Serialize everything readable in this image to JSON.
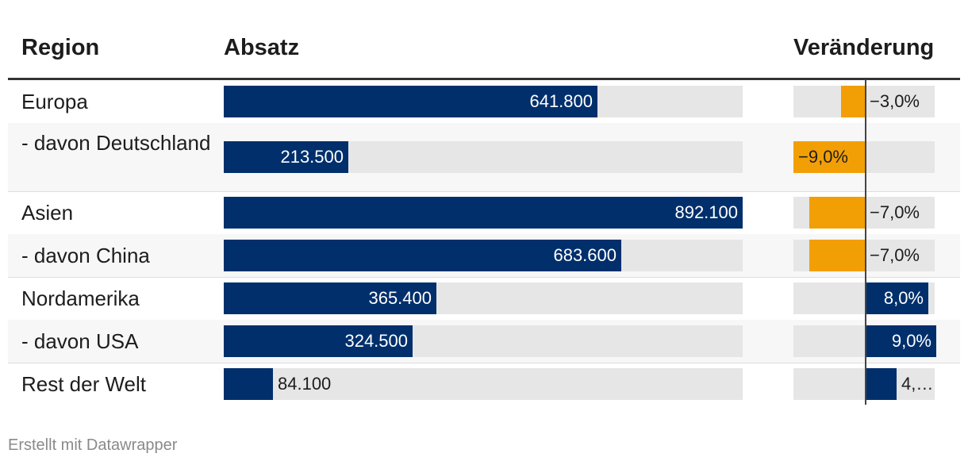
{
  "header": {
    "region": "Region",
    "absatz": "Absatz",
    "change": "Veränderung"
  },
  "footer": "Erstellt mit Datawrapper",
  "colors": {
    "sales_bar": "#002f6c",
    "change_negative": "#f29f05",
    "change_positive": "#002f6c",
    "track": "#e6e6e6"
  },
  "chart_data": {
    "type": "table",
    "title": "",
    "columns": [
      "Region",
      "Absatz",
      "Veränderung"
    ],
    "sales_max": 892100,
    "change_range": [
      -9,
      9
    ],
    "rows": [
      {
        "region": "Europa",
        "sales": 641800,
        "sales_label": "641.800",
        "change": -3.0,
        "change_label": "−3,0%"
      },
      {
        "region": "- davon Deutschland",
        "sales": 213500,
        "sales_label": "213.500",
        "change": -9.0,
        "change_label": "−9,0%"
      },
      {
        "region": "Asien",
        "sales": 892100,
        "sales_label": "892.100",
        "change": -7.0,
        "change_label": "−7,0%"
      },
      {
        "region": "- davon China",
        "sales": 683600,
        "sales_label": "683.600",
        "change": -7.0,
        "change_label": "−7,0%"
      },
      {
        "region": "Nordamerika",
        "sales": 365400,
        "sales_label": "365.400",
        "change": 8.0,
        "change_label": "8,0%"
      },
      {
        "region": "- davon USA",
        "sales": 324500,
        "sales_label": "324.500",
        "change": 9.0,
        "change_label": "9,0%"
      },
      {
        "region": "Rest der Welt",
        "sales": 84100,
        "sales_label": "84.100",
        "change": 4.0,
        "change_label": "4,…"
      }
    ]
  }
}
